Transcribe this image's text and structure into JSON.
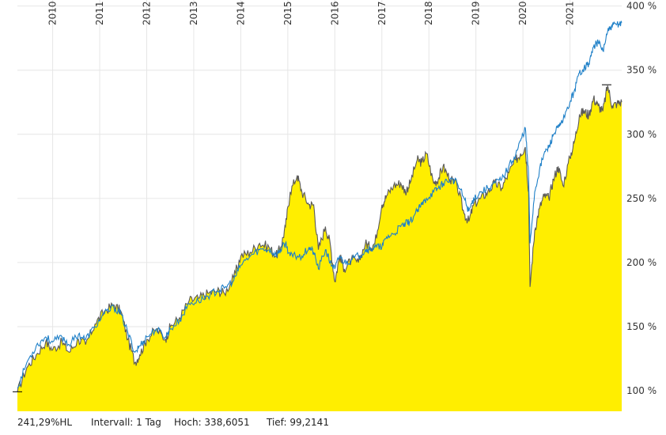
{
  "chart_data": {
    "type": "area",
    "title": "",
    "xlabel": "",
    "ylabel": "",
    "x_range": [
      2009.25,
      2022.1
    ],
    "ylim": [
      84,
      401
    ],
    "grid": true,
    "y_ticks": [
      100,
      150,
      200,
      250,
      300,
      350,
      400
    ],
    "y_tick_labels": [
      "100 %",
      "150 %",
      "200 %",
      "250 %",
      "300 %",
      "350 %",
      "400 %"
    ],
    "x_ticks": [
      2010,
      2011,
      2012,
      2013,
      2014,
      2015,
      2016,
      2017,
      2018,
      2019,
      2020,
      2021
    ],
    "x_tick_labels": [
      "2010",
      "2011",
      "2012",
      "2013",
      "2014",
      "2015",
      "2016",
      "2017",
      "2018",
      "2019",
      "2020",
      "2021"
    ],
    "series": [
      {
        "style": "area",
        "fill": "#ffee00",
        "stroke": "#5a5a5a",
        "x": [
          2009.25,
          2009.45,
          2009.65,
          2009.85,
          2010.0,
          2010.2,
          2010.35,
          2010.55,
          2010.7,
          2010.9,
          2011.1,
          2011.3,
          2011.45,
          2011.6,
          2011.75,
          2011.85,
          2012.0,
          2012.2,
          2012.4,
          2012.5,
          2012.7,
          2012.9,
          2013.1,
          2013.3,
          2013.5,
          2013.65,
          2013.85,
          2014.0,
          2014.2,
          2014.4,
          2014.6,
          2014.75,
          2014.85,
          2014.95,
          2015.05,
          2015.2,
          2015.3,
          2015.45,
          2015.55,
          2015.65,
          2015.8,
          2015.9,
          2016.0,
          2016.1,
          2016.2,
          2016.35,
          2016.5,
          2016.65,
          2016.75,
          2016.85,
          2017.0,
          2017.1,
          2017.25,
          2017.4,
          2017.5,
          2017.6,
          2017.75,
          2017.85,
          2017.95,
          2018.1,
          2018.2,
          2018.3,
          2018.45,
          2018.6,
          2018.75,
          2018.85,
          2018.95,
          2019.1,
          2019.25,
          2019.4,
          2019.55,
          2019.7,
          2019.85,
          2019.95,
          2020.05,
          2020.12,
          2020.15,
          2020.25,
          2020.35,
          2020.45,
          2020.55,
          2020.65,
          2020.75,
          2020.85,
          2021.0,
          2021.1,
          2021.2,
          2021.3,
          2021.4,
          2021.5,
          2021.6,
          2021.7,
          2021.8,
          2021.9,
          2022.0,
          2022.1
        ],
        "y": [
          99,
          118,
          128,
          138,
          132,
          138,
          130,
          140,
          136,
          152,
          162,
          167,
          162,
          140,
          122,
          128,
          140,
          148,
          140,
          150,
          157,
          170,
          172,
          176,
          178,
          176,
          188,
          205,
          208,
          215,
          212,
          205,
          212,
          228,
          255,
          268,
          255,
          245,
          245,
          210,
          228,
          215,
          185,
          205,
          195,
          202,
          200,
          215,
          212,
          215,
          245,
          252,
          260,
          262,
          255,
          262,
          280,
          278,
          285,
          262,
          265,
          275,
          265,
          260,
          238,
          232,
          245,
          250,
          255,
          262,
          258,
          270,
          280,
          285,
          290,
          255,
          181,
          225,
          242,
          252,
          250,
          265,
          275,
          260,
          282,
          295,
          315,
          318,
          315,
          328,
          322,
          318,
          338,
          322,
          324,
          325
        ]
      },
      {
        "style": "line",
        "stroke": "#1f80c8",
        "x": [
          2009.25,
          2009.45,
          2009.65,
          2009.85,
          2010.0,
          2010.2,
          2010.35,
          2010.55,
          2010.7,
          2010.9,
          2011.1,
          2011.3,
          2011.45,
          2011.6,
          2011.75,
          2011.85,
          2012.0,
          2012.2,
          2012.4,
          2012.5,
          2012.7,
          2012.9,
          2013.1,
          2013.3,
          2013.5,
          2013.65,
          2013.85,
          2014.0,
          2014.2,
          2014.4,
          2014.6,
          2014.75,
          2014.85,
          2014.95,
          2015.05,
          2015.2,
          2015.3,
          2015.45,
          2015.55,
          2015.65,
          2015.8,
          2015.9,
          2016.0,
          2016.1,
          2016.2,
          2016.35,
          2016.5,
          2016.65,
          2016.75,
          2016.85,
          2017.0,
          2017.1,
          2017.25,
          2017.4,
          2017.5,
          2017.6,
          2017.75,
          2017.85,
          2017.95,
          2018.1,
          2018.2,
          2018.3,
          2018.45,
          2018.6,
          2018.75,
          2018.85,
          2018.95,
          2019.1,
          2019.25,
          2019.4,
          2019.55,
          2019.7,
          2019.85,
          2019.95,
          2020.05,
          2020.12,
          2020.15,
          2020.25,
          2020.35,
          2020.45,
          2020.55,
          2020.65,
          2020.75,
          2020.85,
          2021.0,
          2021.1,
          2021.2,
          2021.3,
          2021.4,
          2021.5,
          2021.6,
          2021.7,
          2021.8,
          2021.9,
          2022.0,
          2022.1
        ],
        "y": [
          102,
          122,
          135,
          142,
          138,
          142,
          136,
          144,
          140,
          150,
          160,
          165,
          160,
          145,
          130,
          135,
          142,
          148,
          142,
          148,
          155,
          168,
          170,
          174,
          178,
          180,
          186,
          198,
          205,
          210,
          210,
          206,
          210,
          215,
          205,
          205,
          205,
          212,
          208,
          195,
          210,
          200,
          195,
          205,
          200,
          202,
          205,
          210,
          210,
          212,
          212,
          220,
          222,
          228,
          230,
          232,
          240,
          245,
          250,
          255,
          258,
          262,
          265,
          262,
          250,
          240,
          250,
          255,
          258,
          262,
          265,
          275,
          285,
          295,
          305,
          268,
          215,
          255,
          272,
          285,
          290,
          300,
          305,
          310,
          325,
          335,
          348,
          352,
          355,
          368,
          372,
          365,
          380,
          384,
          386,
          387
        ]
      }
    ],
    "markers": [
      {
        "label": "Tief",
        "x": 2009.25,
        "y": 99.2141
      },
      {
        "label": "Hoch",
        "x": 2021.78,
        "y": 338.6051
      }
    ]
  },
  "footer": {
    "performance": "241,29%HL",
    "interval": "Intervall: 1 Tag",
    "high": "Hoch: 338,6051",
    "low": "Tief: 99,2141"
  },
  "colors": {
    "area_fill": "#ffee00",
    "area_line": "#5a5a5a",
    "comparison_line": "#1f80c8",
    "grid": "#e6e6e6",
    "marker": "#000000"
  }
}
